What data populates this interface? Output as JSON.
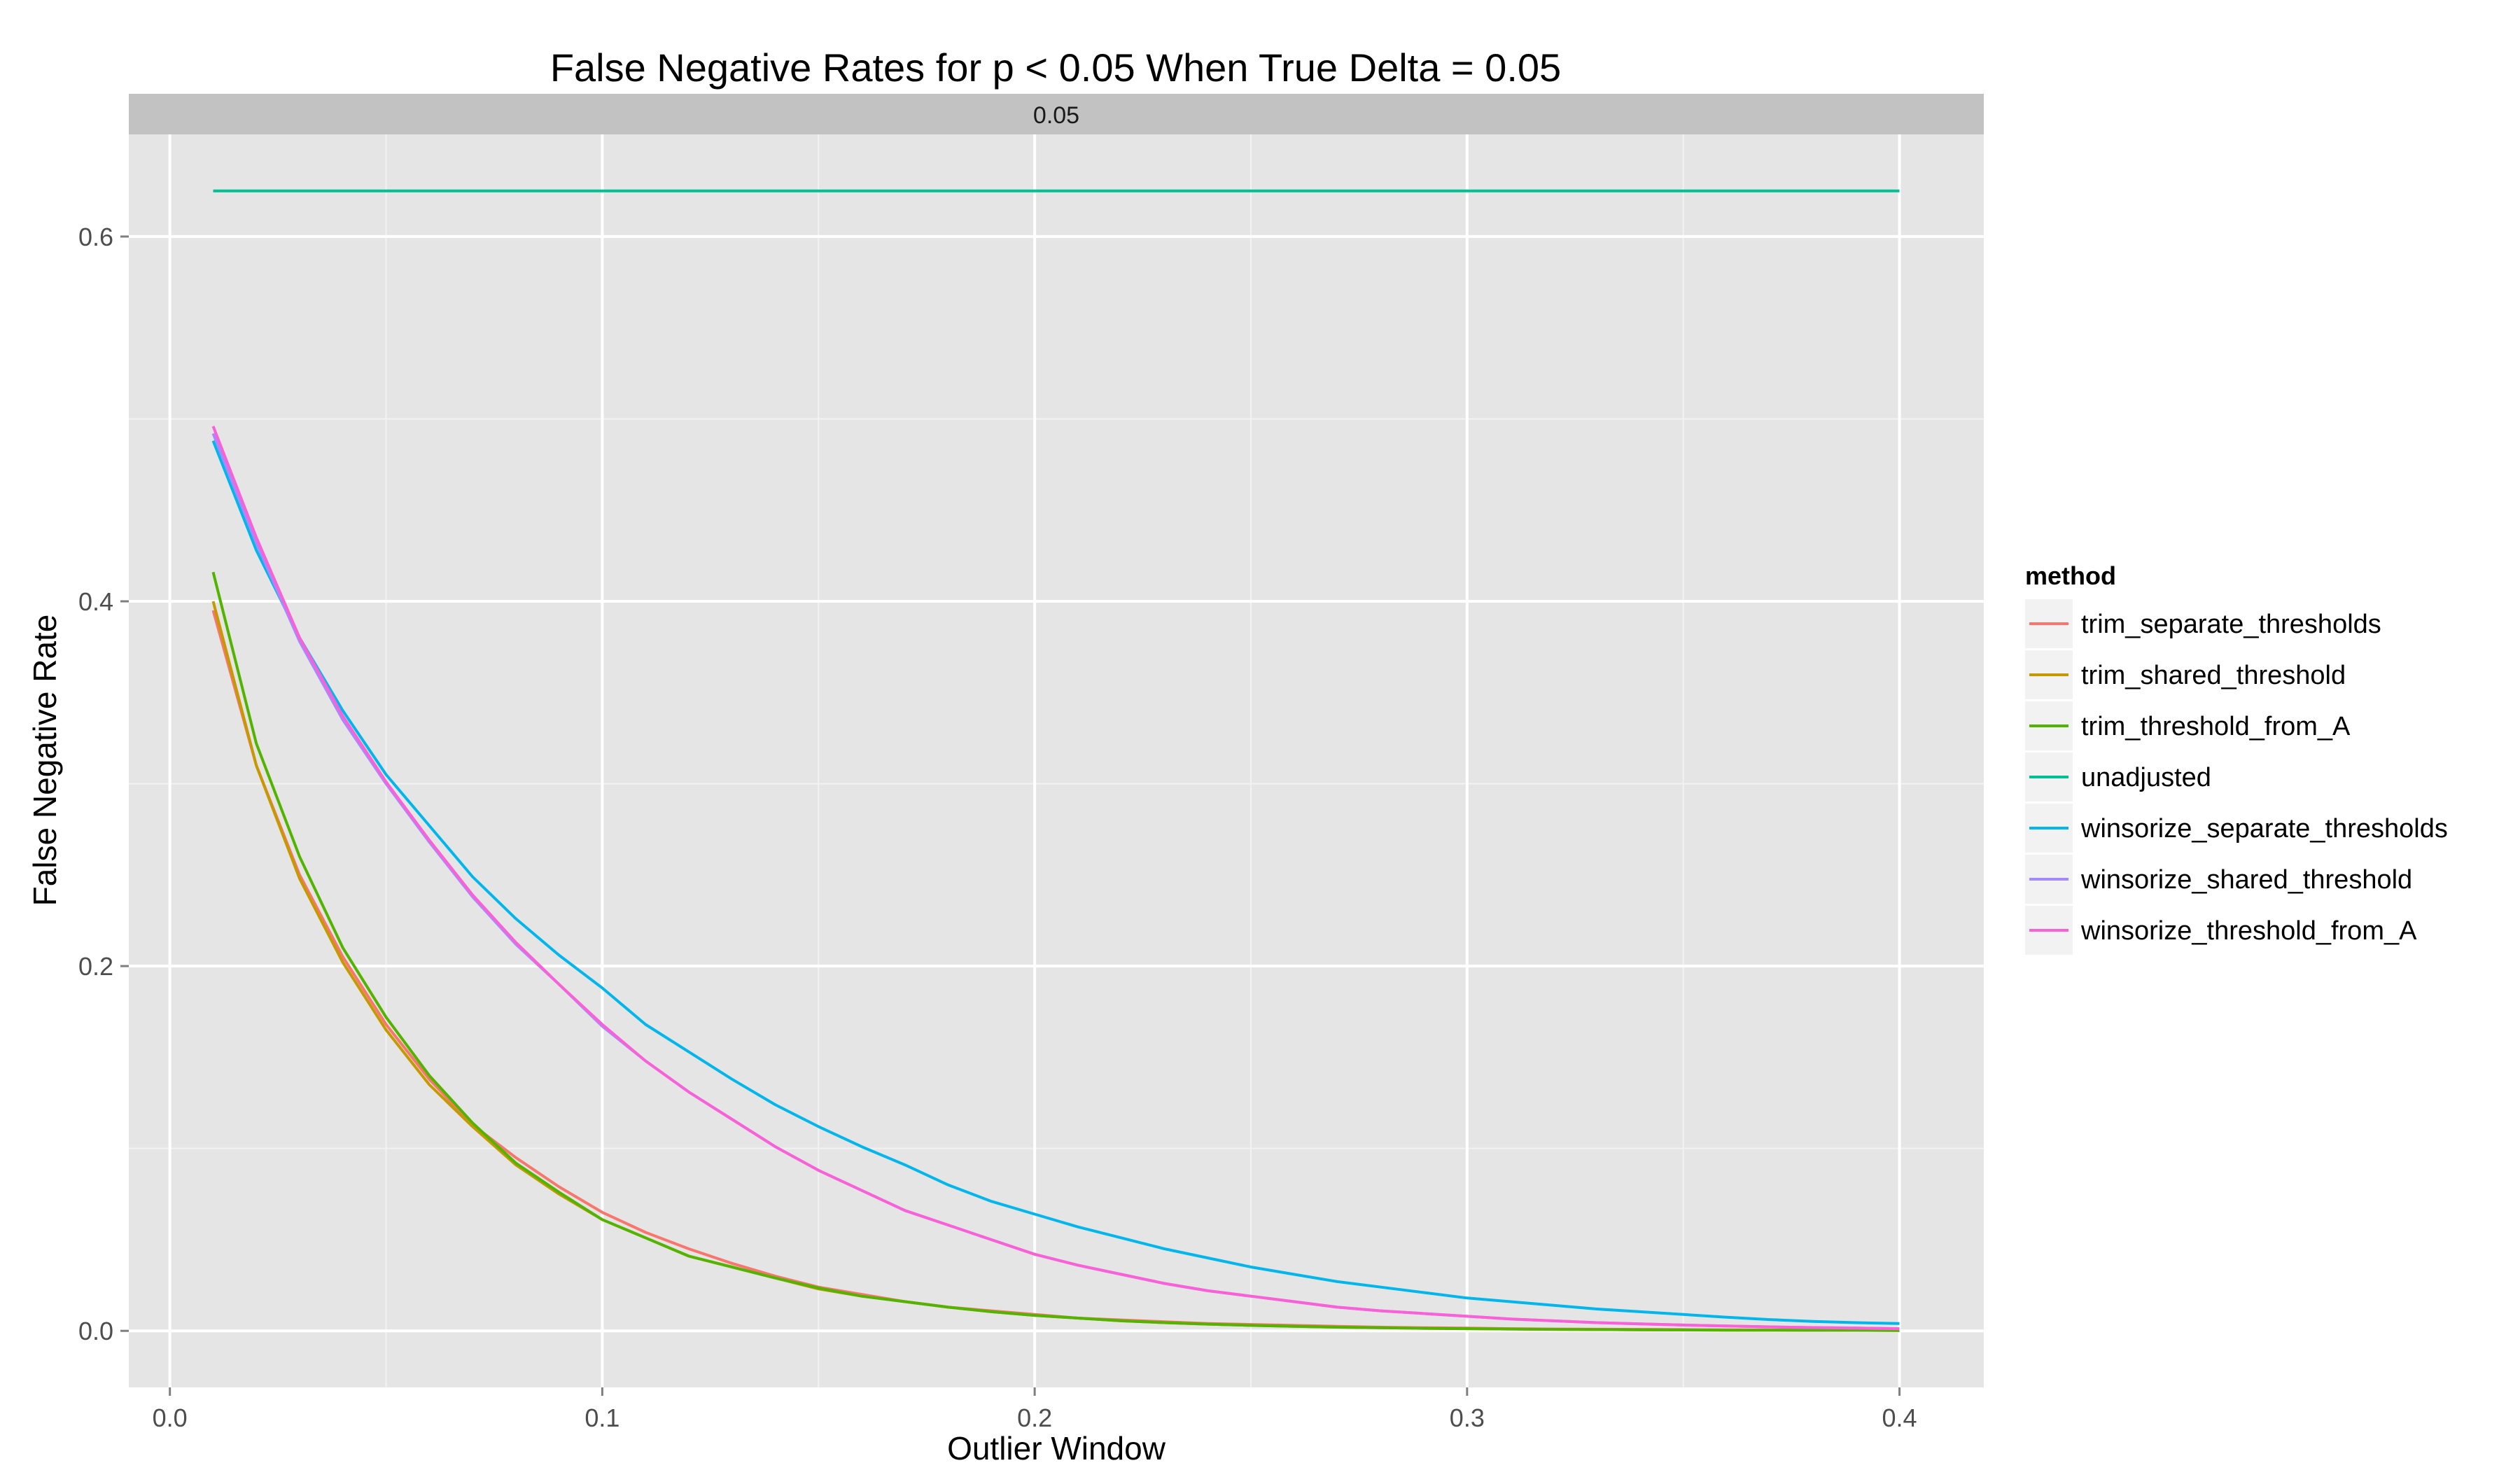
{
  "chart_data": {
    "type": "line",
    "title": "False Negative Rates for p < 0.05 When True Delta = 0.05",
    "facet_label": "0.05",
    "xlabel": "Outlier Window",
    "ylabel": "False Negative Rate",
    "xlim": [
      -0.0095,
      0.4195
    ],
    "ylim": [
      -0.031,
      0.656
    ],
    "x_ticks": [
      0.0,
      0.1,
      0.2,
      0.3,
      0.4
    ],
    "x_tick_labels": [
      "0.0",
      "0.1",
      "0.2",
      "0.3",
      "0.4"
    ],
    "y_ticks": [
      0.0,
      0.2,
      0.4,
      0.6
    ],
    "y_tick_labels": [
      "0.0",
      "0.2",
      "0.4",
      "0.6"
    ],
    "grid": true,
    "legend": {
      "title": "method",
      "position": "right"
    },
    "x": [
      0.01,
      0.02,
      0.03,
      0.04,
      0.05,
      0.06,
      0.07,
      0.08,
      0.09,
      0.1,
      0.11,
      0.12,
      0.13,
      0.14,
      0.15,
      0.16,
      0.17,
      0.18,
      0.19,
      0.2,
      0.21,
      0.22,
      0.23,
      0.24,
      0.25,
      0.26,
      0.27,
      0.28,
      0.29,
      0.3,
      0.31,
      0.32,
      0.33,
      0.34,
      0.35,
      0.36,
      0.37,
      0.38,
      0.39,
      0.4
    ],
    "series": [
      {
        "name": "trim_separate_thresholds",
        "color": "#F8766D",
        "values": [
          0.395,
          0.31,
          0.25,
          0.205,
          0.168,
          0.138,
          0.113,
          0.095,
          0.079,
          0.065,
          0.054,
          0.045,
          0.037,
          0.03,
          0.024,
          0.02,
          0.016,
          0.013,
          0.011,
          0.009,
          0.007,
          0.006,
          0.005,
          0.004,
          0.0035,
          0.003,
          0.0025,
          0.002,
          0.0017,
          0.0015,
          0.0012,
          0.001,
          0.0009,
          0.0008,
          0.0007,
          0.0006,
          0.0005,
          0.0004,
          0.0003,
          0.0003
        ]
      },
      {
        "name": "trim_shared_threshold",
        "color": "#C49A00",
        "values": [
          0.4,
          0.31,
          0.248,
          0.202,
          0.165,
          0.135,
          0.112,
          0.091,
          0.075,
          0.061,
          0.051,
          0.041,
          0.035,
          0.029,
          0.023,
          0.019,
          0.016,
          0.013,
          0.0105,
          0.0085,
          0.007,
          0.0055,
          0.0045,
          0.0037,
          0.003,
          0.0025,
          0.002,
          0.0017,
          0.0014,
          0.0012,
          0.001,
          0.0008,
          0.0007,
          0.0006,
          0.0005,
          0.0004,
          0.0004,
          0.0003,
          0.0003,
          0.0002
        ]
      },
      {
        "name": "trim_threshold_from_A",
        "color": "#53B400",
        "values": [
          0.416,
          0.322,
          0.26,
          0.21,
          0.172,
          0.14,
          0.114,
          0.092,
          0.076,
          0.061,
          0.051,
          0.041,
          0.035,
          0.029,
          0.0235,
          0.019,
          0.016,
          0.013,
          0.0105,
          0.0085,
          0.007,
          0.0055,
          0.0045,
          0.0037,
          0.003,
          0.0025,
          0.002,
          0.0017,
          0.0014,
          0.0012,
          0.001,
          0.0008,
          0.0007,
          0.0006,
          0.0005,
          0.0004,
          0.0004,
          0.0003,
          0.0003,
          0.0002
        ]
      },
      {
        "name": "unadjusted",
        "color": "#00C094",
        "values": [
          0.625,
          0.625,
          0.625,
          0.625,
          0.625,
          0.625,
          0.625,
          0.625,
          0.625,
          0.625,
          0.625,
          0.625,
          0.625,
          0.625,
          0.625,
          0.625,
          0.625,
          0.625,
          0.625,
          0.625,
          0.625,
          0.625,
          0.625,
          0.625,
          0.625,
          0.625,
          0.625,
          0.625,
          0.625,
          0.625,
          0.625,
          0.625,
          0.625,
          0.625,
          0.625,
          0.625,
          0.625,
          0.625,
          0.625,
          0.625
        ]
      },
      {
        "name": "winsorize_separate_thresholds",
        "color": "#00B6EB",
        "values": [
          0.488,
          0.428,
          0.38,
          0.34,
          0.305,
          0.277,
          0.249,
          0.226,
          0.206,
          0.188,
          0.168,
          0.153,
          0.138,
          0.124,
          0.112,
          0.101,
          0.091,
          0.08,
          0.071,
          0.064,
          0.057,
          0.051,
          0.045,
          0.04,
          0.035,
          0.031,
          0.027,
          0.024,
          0.021,
          0.018,
          0.016,
          0.014,
          0.012,
          0.0105,
          0.009,
          0.0075,
          0.0062,
          0.0052,
          0.0045,
          0.004
        ]
      },
      {
        "name": "winsorize_shared_threshold",
        "color": "#A58AFF",
        "values": [
          0.492,
          0.432,
          0.378,
          0.335,
          0.3,
          0.268,
          0.238,
          0.212,
          0.19,
          0.167,
          0.148,
          0.131,
          0.116,
          0.101,
          0.088,
          0.077,
          0.066,
          0.058,
          0.05,
          0.042,
          0.036,
          0.031,
          0.026,
          0.022,
          0.019,
          0.016,
          0.013,
          0.011,
          0.0095,
          0.008,
          0.0065,
          0.0055,
          0.0045,
          0.0038,
          0.0032,
          0.0027,
          0.0022,
          0.0018,
          0.0015,
          0.0012
        ]
      },
      {
        "name": "winsorize_threshold_from_A",
        "color": "#FB61D7",
        "values": [
          0.496,
          0.435,
          0.38,
          0.337,
          0.301,
          0.269,
          0.239,
          0.213,
          0.19,
          0.168,
          0.148,
          0.131,
          0.116,
          0.101,
          0.088,
          0.077,
          0.066,
          0.058,
          0.05,
          0.042,
          0.036,
          0.031,
          0.026,
          0.022,
          0.019,
          0.016,
          0.013,
          0.011,
          0.0095,
          0.008,
          0.0065,
          0.0055,
          0.0045,
          0.0038,
          0.0032,
          0.0027,
          0.0022,
          0.0018,
          0.0015,
          0.0012
        ]
      }
    ]
  }
}
